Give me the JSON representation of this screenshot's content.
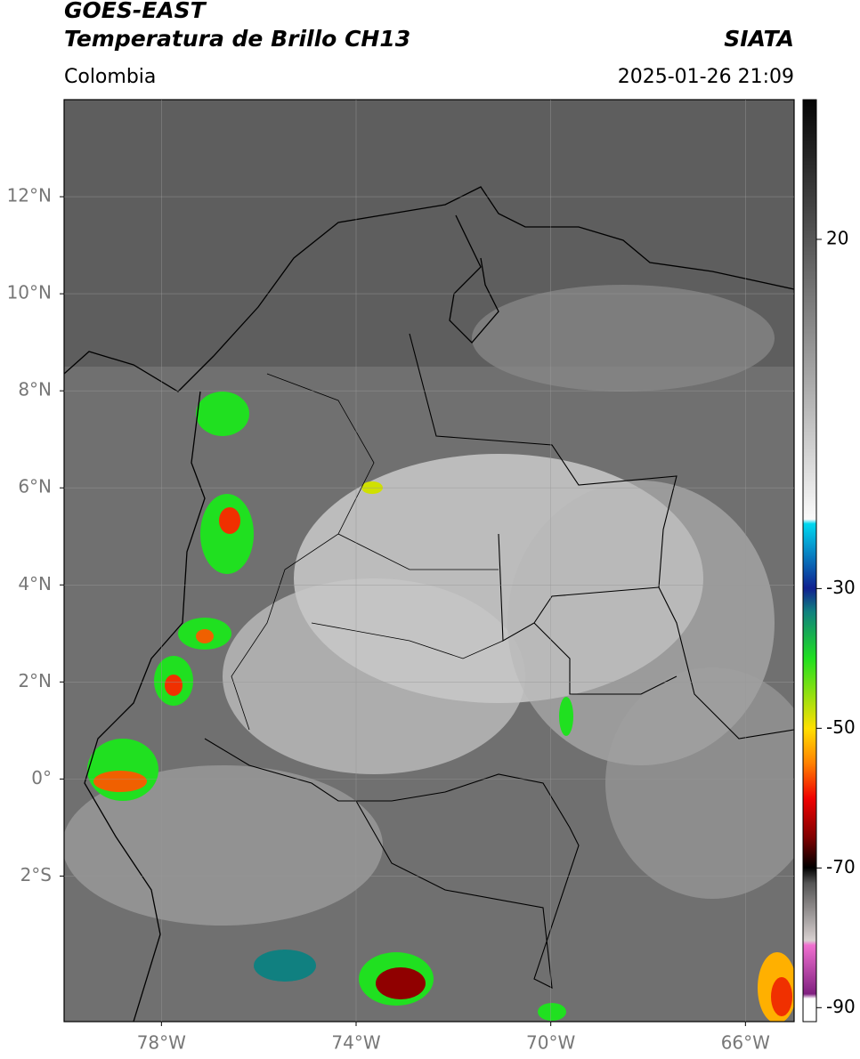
{
  "header": {
    "satellite": "GOES-EAST",
    "product": "Temperatura de Brillo CH13",
    "source": "SIATA",
    "region": "Colombia",
    "datetime": "2025-01-26 21:09"
  },
  "map": {
    "lonlim": [
      -80,
      -65
    ],
    "latlim": [
      -5,
      14
    ],
    "lonticks": [
      {
        "value": -78,
        "label": "78°W"
      },
      {
        "value": -74,
        "label": "74°W"
      },
      {
        "value": -70,
        "label": "70°W"
      },
      {
        "value": -66,
        "label": "66°W"
      }
    ],
    "latticks": [
      {
        "value": 12,
        "label": "12°N"
      },
      {
        "value": 10,
        "label": "10°N"
      },
      {
        "value": 8,
        "label": "8°N"
      },
      {
        "value": 6,
        "label": "6°N"
      },
      {
        "value": 4,
        "label": "4°N"
      },
      {
        "value": 2,
        "label": "2°N"
      },
      {
        "value": 0,
        "label": "0°"
      },
      {
        "value": -2,
        "label": "2°S"
      }
    ],
    "grid": true
  },
  "colorbar": {
    "lim": [
      -92,
      40
    ],
    "ticks": [
      20,
      -30,
      -50,
      -70,
      -90
    ]
  }
}
